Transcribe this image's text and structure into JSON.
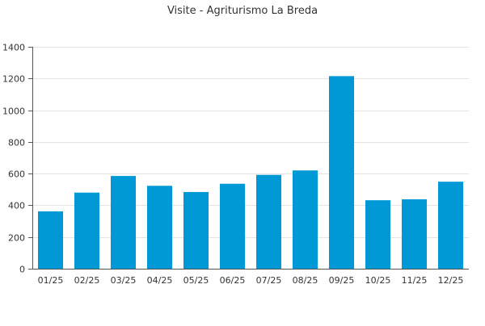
{
  "chart_data": {
    "type": "bar",
    "title": "Visite - Agriturismo La Breda",
    "xlabel": "",
    "ylabel": "",
    "categories": [
      "01/25",
      "02/25",
      "03/25",
      "04/25",
      "05/25",
      "06/25",
      "07/25",
      "08/25",
      "09/25",
      "10/25",
      "11/25",
      "12/25"
    ],
    "values": [
      362,
      480,
      585,
      523,
      484,
      536,
      592,
      620,
      1215,
      432,
      438,
      549
    ],
    "ylim": [
      0,
      1400
    ],
    "yticks": [
      0,
      200,
      400,
      600,
      800,
      1000,
      1200,
      1400
    ],
    "grid": true,
    "legend": "none",
    "colors": {
      "bar": "#0099d6",
      "grid": "#e3e3e3",
      "axis": "#555555",
      "text": "#333333"
    }
  }
}
